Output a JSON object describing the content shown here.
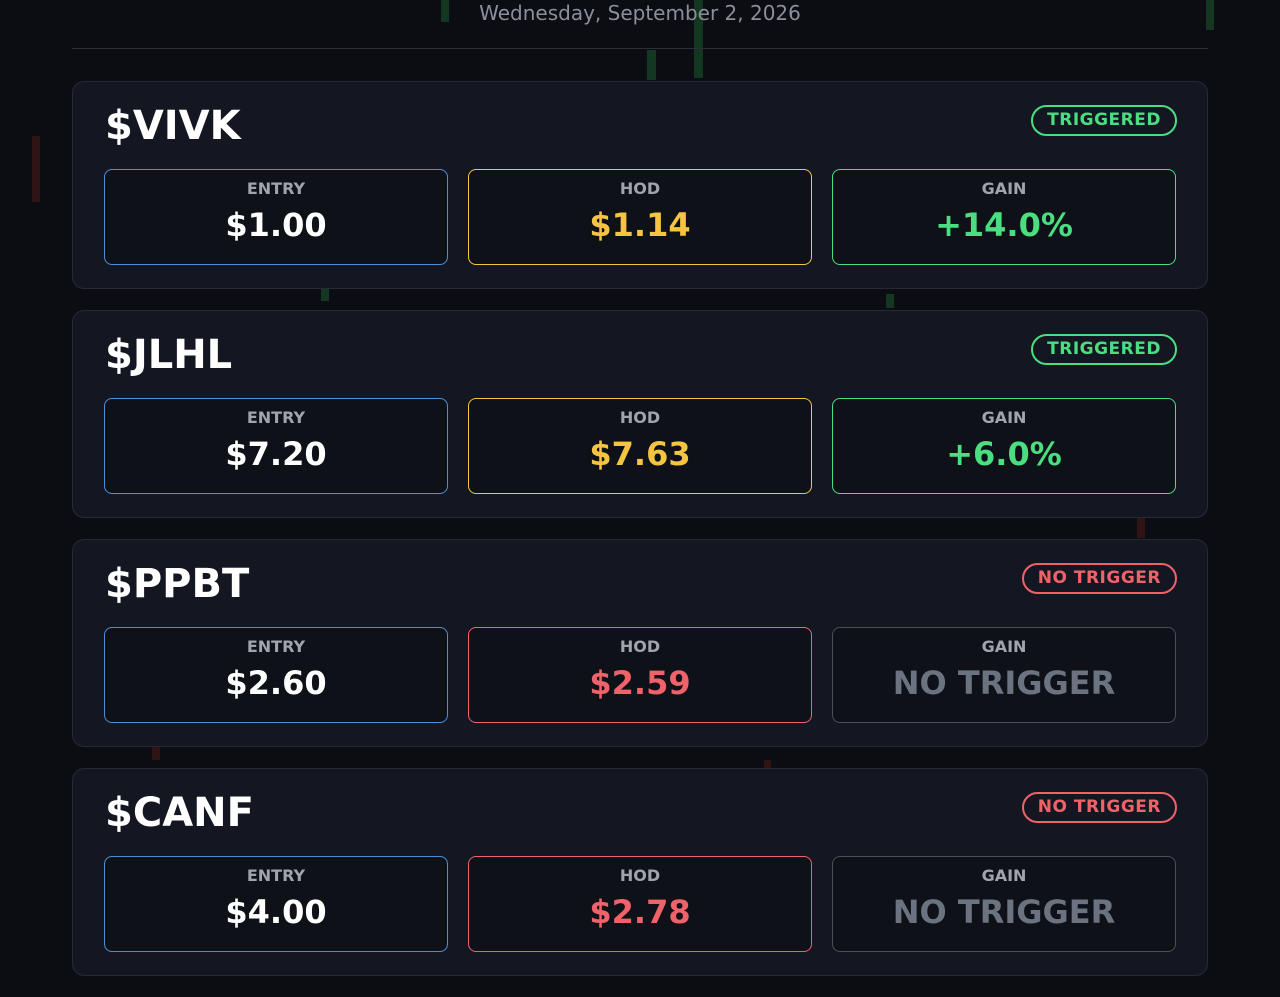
{
  "header": {
    "date": "Wednesday, September 2, 2026"
  },
  "cards": [
    {
      "ticker": "$VIVK",
      "status": "TRIGGERED",
      "status_color": "#4ade80",
      "entry": {
        "label": "ENTRY",
        "value": "$1.00",
        "color": "#ffffff"
      },
      "hod": {
        "label": "HOD",
        "value": "$1.14",
        "color": "#f5c542"
      },
      "gain": {
        "label": "GAIN",
        "value": "+14.0%",
        "color": "#4ade80"
      }
    },
    {
      "ticker": "$JLHL",
      "status": "TRIGGERED",
      "status_color": "#4ade80",
      "entry": {
        "label": "ENTRY",
        "value": "$7.20",
        "color": "#ffffff"
      },
      "hod": {
        "label": "HOD",
        "value": "$7.63",
        "color": "#f5c542"
      },
      "gain": {
        "label": "GAIN",
        "value": "+6.0%",
        "color": "#4ade80"
      }
    },
    {
      "ticker": "$PPBT",
      "status": "NO TRIGGER",
      "status_color": "#f0626a",
      "entry": {
        "label": "ENTRY",
        "value": "$2.60",
        "color": "#ffffff"
      },
      "hod": {
        "label": "HOD",
        "value": "$2.59",
        "color": "#f0626a"
      },
      "gain": {
        "label": "GAIN",
        "value": "NO TRIGGER",
        "color": "#6b7280"
      }
    },
    {
      "ticker": "$CANF",
      "status": "NO TRIGGER",
      "status_color": "#f0626a",
      "entry": {
        "label": "ENTRY",
        "value": "$4.00",
        "color": "#ffffff"
      },
      "hod": {
        "label": "HOD",
        "value": "$2.78",
        "color": "#f0626a"
      },
      "gain": {
        "label": "GAIN",
        "value": "NO TRIGGER",
        "color": "#6b7280"
      }
    }
  ]
}
